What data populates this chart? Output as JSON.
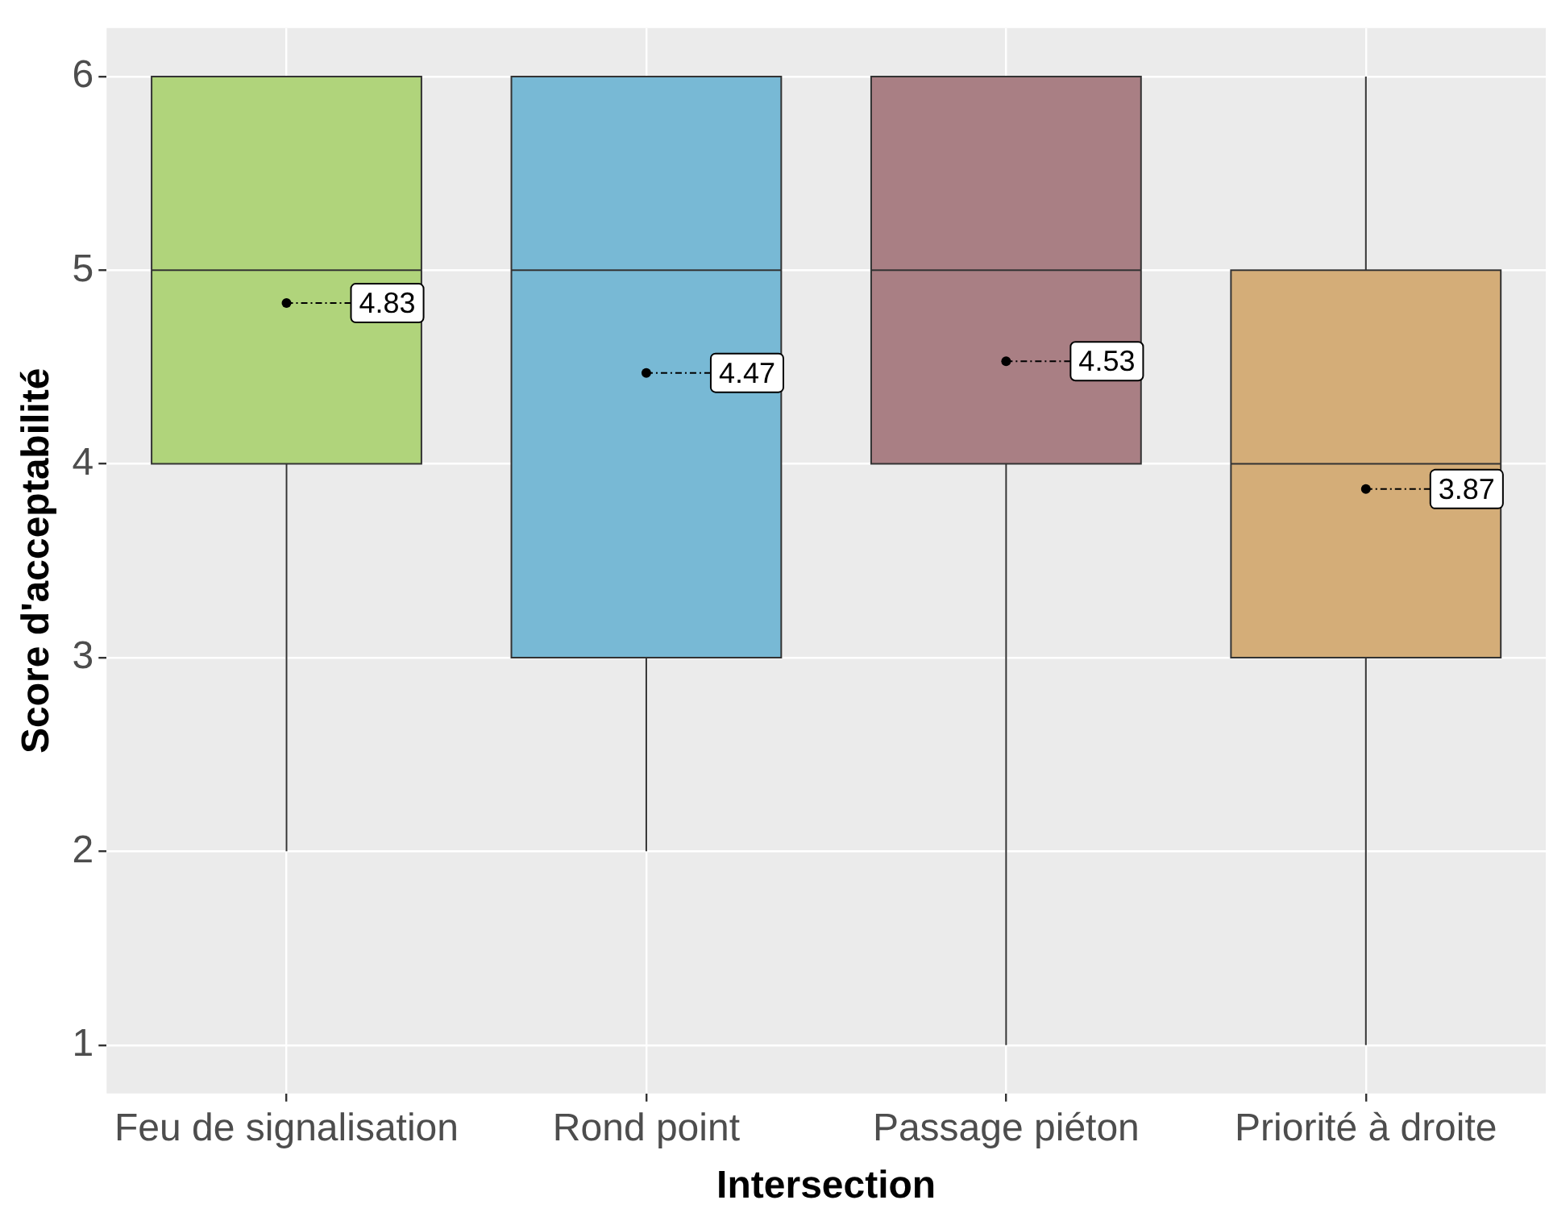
{
  "chart_data": {
    "type": "box",
    "xlabel": "Intersection",
    "ylabel": "Score d'acceptabilité",
    "categories": [
      "Feu de signalisation",
      "Rond point",
      "Passage piéton",
      "Priorité à droite"
    ],
    "colors": [
      "#b0d47b",
      "#78b9d5",
      "#a97f84",
      "#d4ad78"
    ],
    "boxes": [
      {
        "low": 2,
        "q1": 4,
        "median": 5,
        "q3": 6,
        "high": 6,
        "mean": 4.83
      },
      {
        "low": 2,
        "q1": 3,
        "median": 5,
        "q3": 6,
        "high": 6,
        "mean": 4.47
      },
      {
        "low": 1,
        "q1": 4,
        "median": 5,
        "q3": 6,
        "high": 6,
        "mean": 4.53
      },
      {
        "low": 1,
        "q1": 3,
        "median": 4,
        "q3": 5,
        "high": 6,
        "mean": 3.87
      }
    ],
    "annotations": [
      "4.83",
      "4.47",
      "4.53",
      "3.87"
    ],
    "ylim": [
      0.75,
      6.25
    ],
    "yticks": [
      1,
      2,
      3,
      4,
      5,
      6
    ],
    "grid": true,
    "legend": false
  }
}
